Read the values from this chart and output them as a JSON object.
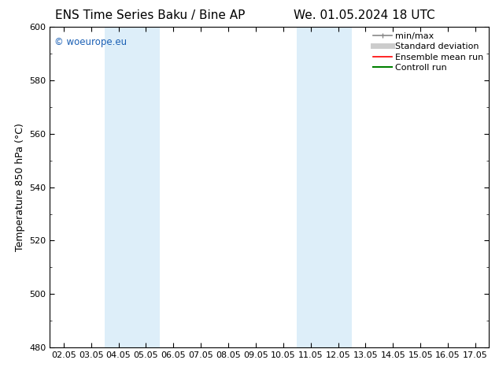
{
  "title_left": "ENS Time Series Baku / Bine AP",
  "title_right": "We. 01.05.2024 18 UTC",
  "ylabel": "Temperature 850 hPa (°C)",
  "ylim": [
    480,
    600
  ],
  "yticks": [
    480,
    500,
    520,
    540,
    560,
    580,
    600
  ],
  "xtick_labels": [
    "02.05",
    "03.05",
    "04.05",
    "05.05",
    "06.05",
    "07.05",
    "08.05",
    "09.05",
    "10.05",
    "11.05",
    "12.05",
    "13.05",
    "14.05",
    "15.05",
    "16.05",
    "17.05"
  ],
  "xtick_positions": [
    0,
    1,
    2,
    3,
    4,
    5,
    6,
    7,
    8,
    9,
    10,
    11,
    12,
    13,
    14,
    15
  ],
  "shaded_regions": [
    {
      "x_start": 2.0,
      "x_end": 4.0,
      "color": "#ddeef9"
    },
    {
      "x_start": 9.0,
      "x_end": 11.0,
      "color": "#ddeef9"
    }
  ],
  "watermark_text": "© woeurope.eu",
  "watermark_color": "#1a5fb4",
  "bg_color": "#ffffff",
  "plot_bg_color": "#ffffff",
  "legend_entries": [
    {
      "label": "min/max",
      "color": "#888888",
      "lw": 1.2,
      "style": "capped"
    },
    {
      "label": "Standard deviation",
      "color": "#cccccc",
      "lw": 5,
      "style": "thick"
    },
    {
      "label": "Ensemble mean run",
      "color": "#ff0000",
      "lw": 1.2,
      "style": "solid"
    },
    {
      "label": "Controll run",
      "color": "#008000",
      "lw": 1.5,
      "style": "solid"
    }
  ],
  "title_fontsize": 11,
  "axis_label_fontsize": 9,
  "tick_fontsize": 8,
  "legend_fontsize": 8
}
